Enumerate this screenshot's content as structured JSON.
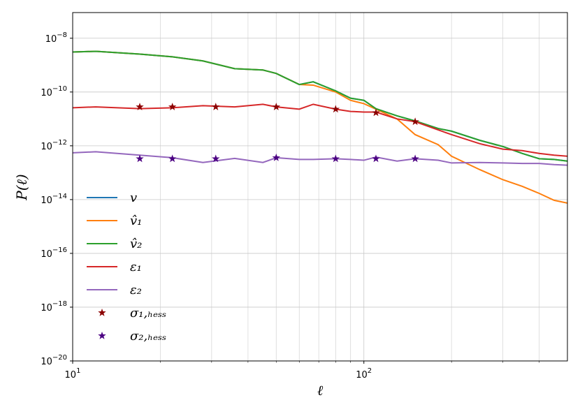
{
  "chart_data": {
    "type": "line",
    "xlabel": "ℓ",
    "ylabel": "P(ℓ)",
    "xscale": "log",
    "yscale": "log",
    "grid": true,
    "legend": "center left",
    "xlim": [
      10,
      500
    ],
    "ylim": [
      1e-20,
      9e-08
    ],
    "xticks": [
      {
        "value": 10,
        "label": "101"
      },
      {
        "value": 100,
        "label": "102"
      }
    ],
    "yticks": [
      {
        "value": 1e-20,
        "label": "10−20"
      },
      {
        "value": 1e-18,
        "label": "10−18"
      },
      {
        "value": 1e-16,
        "label": "10−16"
      },
      {
        "value": 1e-14,
        "label": "10−14"
      },
      {
        "value": 1e-12,
        "label": "10−12"
      },
      {
        "value": 1e-10,
        "label": "10−10"
      },
      {
        "value": 1e-08,
        "label": "10−8"
      }
    ],
    "x": [
      10,
      12,
      17,
      22,
      28,
      36,
      45,
      50,
      60,
      67,
      80,
      90,
      100,
      110,
      130,
      150,
      180,
      200,
      250,
      300,
      350,
      400,
      450,
      500
    ],
    "series": [
      {
        "name": "v",
        "color": "#1f77b4",
        "values": [
          3.07e-09,
          3.26e-09,
          2.57e-09,
          2.03e-09,
          1.43e-09,
          7.4e-10,
          6.6e-10,
          4.9e-10,
          1.9e-10,
          2.4e-10,
          1.1e-10,
          5.9e-11,
          4.9e-11,
          2.4e-11,
          1.3e-11,
          8.4e-12,
          4.4e-12,
          3.5e-12,
          1.6e-12,
          9.4e-13,
          5.2e-13,
          3.3e-13,
          3.1e-13,
          2.7e-13
        ]
      },
      {
        "name": "v̂₁",
        "color": "#ff7f0e",
        "values": [
          3.07e-09,
          3.26e-09,
          2.57e-09,
          2.03e-09,
          1.43e-09,
          7.4e-10,
          6.6e-10,
          4.9e-10,
          1.9e-10,
          1.8e-10,
          1e-10,
          4.9e-11,
          3.7e-11,
          2.3e-11,
          1e-11,
          2.6e-12,
          1.1e-12,
          4.1e-13,
          1.3e-13,
          5.5e-14,
          3.1e-14,
          1.7e-14,
          9.4e-15,
          7.4e-15
        ]
      },
      {
        "name": "v̂₂",
        "color": "#2ca02c",
        "values": [
          3.07e-09,
          3.26e-09,
          2.57e-09,
          2.03e-09,
          1.43e-09,
          7.4e-10,
          6.6e-10,
          4.9e-10,
          1.9e-10,
          2.4e-10,
          1.1e-10,
          5.9e-11,
          4.9e-11,
          2.4e-11,
          1.3e-11,
          8.4e-12,
          4.4e-12,
          3.5e-12,
          1.6e-12,
          9.4e-13,
          5.2e-13,
          3.3e-13,
          3.1e-13,
          2.7e-13
        ]
      },
      {
        "name": "ε₁",
        "color": "#d62728",
        "values": [
          2.6e-11,
          2.8e-11,
          2.4e-11,
          2.6e-11,
          3.1e-11,
          2.8e-11,
          3.5e-11,
          2.8e-11,
          2.3e-11,
          3.5e-11,
          2.3e-11,
          1.9e-11,
          1.8e-11,
          1.8e-11,
          1e-11,
          7.9e-12,
          3.9e-12,
          2.6e-12,
          1.2e-12,
          7.5e-13,
          6.6e-13,
          5.2e-13,
          4.5e-13,
          4.1e-13
        ]
      },
      {
        "name": "ε₂",
        "color": "#9467bd",
        "values": [
          5.5e-13,
          6e-13,
          4.5e-13,
          3.6e-13,
          2.4e-13,
          3.4e-13,
          2.4e-13,
          3.6e-13,
          3.1e-13,
          3.1e-13,
          3.3e-13,
          3.1e-13,
          2.9e-13,
          3.8e-13,
          2.7e-13,
          3.3e-13,
          2.9e-13,
          2.3e-13,
          2.4e-13,
          2.3e-13,
          2.2e-13,
          2.2e-13,
          2e-13,
          1.9e-13
        ]
      },
      {
        "name": "σ₁,ₕₑₛₛ",
        "color": "#8b0000",
        "marker": "star",
        "x": [
          17,
          22,
          31,
          50,
          80,
          110,
          150
        ],
        "values": [
          2.8e-11,
          2.8e-11,
          2.8e-11,
          2.8e-11,
          2.3e-11,
          1.7e-11,
          7.9e-12
        ]
      },
      {
        "name": "σ₂,ₕₑₛₛ",
        "color": "#4b0082",
        "marker": "star",
        "x": [
          17,
          22,
          31,
          50,
          80,
          110,
          150
        ],
        "values": [
          3.3e-13,
          3.3e-13,
          3.3e-13,
          3.6e-13,
          3.3e-13,
          3.3e-13,
          3.3e-13
        ]
      }
    ]
  }
}
